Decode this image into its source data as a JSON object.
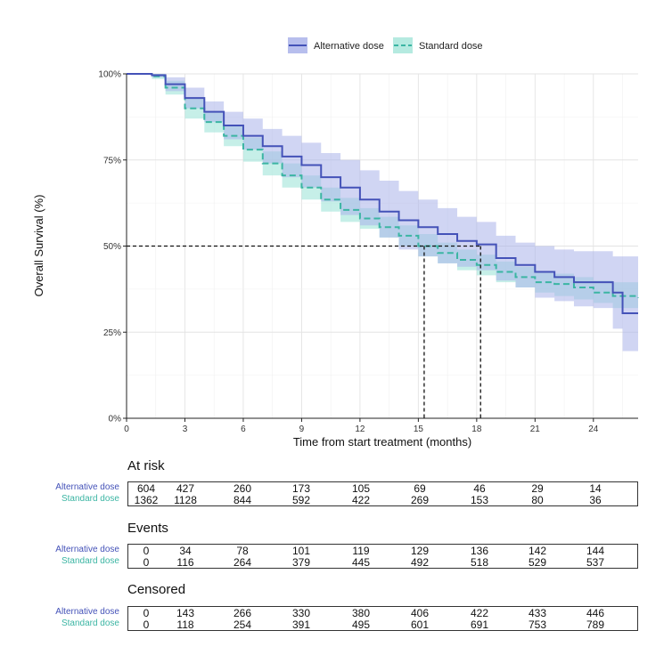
{
  "chart_data": {
    "type": "line",
    "xlabel": "Time from start treatment (months)",
    "ylabel": "Overall Survival (%)",
    "xlim": [
      0,
      26.3
    ],
    "ylim": [
      0,
      100
    ],
    "x_ticks": [
      "0",
      "3",
      "6",
      "9",
      "12",
      "15",
      "18",
      "21",
      "24"
    ],
    "y_ticks": [
      "0%",
      "25%",
      "50%",
      "75%",
      "100%"
    ],
    "grid": true,
    "legend_position": "top",
    "medians": [
      15.3,
      18.2
    ],
    "series": [
      {
        "name": "Alternative dose",
        "color": "#4452b8",
        "band_color": "#aab3ea",
        "line_style": "solid",
        "points": [
          [
            0,
            100
          ],
          [
            1.3,
            99.6
          ],
          [
            2,
            97
          ],
          [
            3,
            93
          ],
          [
            4,
            89
          ],
          [
            5,
            85
          ],
          [
            6,
            82
          ],
          [
            7,
            79
          ],
          [
            8,
            76
          ],
          [
            9,
            73.5
          ],
          [
            10,
            70
          ],
          [
            11,
            67
          ],
          [
            12,
            63.5
          ],
          [
            13,
            60
          ],
          [
            14,
            57.5
          ],
          [
            15,
            55.5
          ],
          [
            16,
            53.5
          ],
          [
            17,
            51.5
          ],
          [
            18,
            50.5
          ],
          [
            19,
            46.5
          ],
          [
            20,
            44.5
          ],
          [
            21,
            42.5
          ],
          [
            22,
            41
          ],
          [
            23,
            39.5
          ],
          [
            24,
            39.5
          ],
          [
            25,
            36.5
          ],
          [
            25.5,
            30.5
          ],
          [
            26.3,
            30.5
          ]
        ],
        "ci_upper": [
          [
            0,
            100
          ],
          [
            1.3,
            100
          ],
          [
            2,
            99
          ],
          [
            3,
            96
          ],
          [
            4,
            92
          ],
          [
            5,
            89
          ],
          [
            6,
            87
          ],
          [
            7,
            84
          ],
          [
            8,
            82
          ],
          [
            9,
            80
          ],
          [
            10,
            77
          ],
          [
            11,
            75
          ],
          [
            12,
            72
          ],
          [
            13,
            69
          ],
          [
            14,
            66
          ],
          [
            15,
            63.5
          ],
          [
            16,
            61
          ],
          [
            17,
            58.5
          ],
          [
            18,
            57
          ],
          [
            19,
            53
          ],
          [
            20,
            51
          ],
          [
            21,
            50
          ],
          [
            22,
            49
          ],
          [
            23,
            48.5
          ],
          [
            24,
            48.5
          ],
          [
            25,
            47
          ],
          [
            26.3,
            47
          ]
        ],
        "ci_lower": [
          [
            0,
            100
          ],
          [
            1.3,
            99
          ],
          [
            2,
            95
          ],
          [
            3,
            90
          ],
          [
            4,
            86
          ],
          [
            5,
            81
          ],
          [
            6,
            78
          ],
          [
            7,
            74
          ],
          [
            8,
            70
          ],
          [
            9,
            67
          ],
          [
            10,
            63
          ],
          [
            11,
            59
          ],
          [
            12,
            56
          ],
          [
            13,
            52.5
          ],
          [
            14,
            49
          ],
          [
            15,
            47
          ],
          [
            16,
            45
          ],
          [
            17,
            44
          ],
          [
            18,
            43
          ],
          [
            19,
            40
          ],
          [
            20,
            38
          ],
          [
            21,
            35
          ],
          [
            22,
            34
          ],
          [
            23,
            32.5
          ],
          [
            24,
            32
          ],
          [
            25,
            26
          ],
          [
            25.5,
            19.5
          ],
          [
            26.3,
            19.5
          ]
        ]
      },
      {
        "name": "Standard dose",
        "color": "#3bb5a3",
        "band_color": "#a8e6db",
        "line_style": "dashed",
        "points": [
          [
            0,
            100
          ],
          [
            1.3,
            99.3
          ],
          [
            2,
            96
          ],
          [
            3,
            90
          ],
          [
            4,
            86
          ],
          [
            5,
            82
          ],
          [
            6,
            78
          ],
          [
            7,
            74
          ],
          [
            8,
            70.5
          ],
          [
            9,
            67
          ],
          [
            10,
            63.5
          ],
          [
            11,
            60.5
          ],
          [
            12,
            58
          ],
          [
            13,
            55.5
          ],
          [
            14,
            53
          ],
          [
            15,
            50
          ],
          [
            16,
            48
          ],
          [
            17,
            46
          ],
          [
            18,
            44.5
          ],
          [
            19,
            42.5
          ],
          [
            20,
            41
          ],
          [
            21,
            39.5
          ],
          [
            22,
            39
          ],
          [
            23,
            38
          ],
          [
            24,
            36.5
          ],
          [
            25,
            35.5
          ],
          [
            26.3,
            35
          ]
        ],
        "ci_upper": [
          [
            0,
            100
          ],
          [
            1.3,
            100
          ],
          [
            2,
            98
          ],
          [
            3,
            93
          ],
          [
            4,
            89
          ],
          [
            5,
            85
          ],
          [
            6,
            81.5
          ],
          [
            7,
            77.5
          ],
          [
            8,
            74
          ],
          [
            9,
            70.5
          ],
          [
            10,
            67
          ],
          [
            11,
            64
          ],
          [
            12,
            61
          ],
          [
            13,
            58.5
          ],
          [
            14,
            56
          ],
          [
            15,
            53.5
          ],
          [
            16,
            51
          ],
          [
            17,
            49
          ],
          [
            18,
            47.5
          ],
          [
            19,
            45.5
          ],
          [
            20,
            44
          ],
          [
            21,
            42.5
          ],
          [
            22,
            42
          ],
          [
            23,
            41
          ],
          [
            24,
            40
          ],
          [
            25,
            39.5
          ],
          [
            26.3,
            39
          ]
        ],
        "ci_lower": [
          [
            0,
            100
          ],
          [
            1.3,
            98.5
          ],
          [
            2,
            94
          ],
          [
            3,
            87
          ],
          [
            4,
            83
          ],
          [
            5,
            79
          ],
          [
            6,
            74.5
          ],
          [
            7,
            70.5
          ],
          [
            8,
            67
          ],
          [
            9,
            63.5
          ],
          [
            10,
            60
          ],
          [
            11,
            57
          ],
          [
            12,
            55
          ],
          [
            13,
            52.5
          ],
          [
            14,
            50
          ],
          [
            15,
            47
          ],
          [
            16,
            45
          ],
          [
            17,
            43
          ],
          [
            18,
            41.5
          ],
          [
            19,
            39.5
          ],
          [
            20,
            38
          ],
          [
            21,
            36.5
          ],
          [
            22,
            35.5
          ],
          [
            23,
            34.5
          ],
          [
            24,
            33.5
          ],
          [
            25,
            32
          ],
          [
            26.3,
            31
          ]
        ]
      }
    ]
  },
  "tables": [
    {
      "title": "At risk",
      "alt_label": "Alternative dose",
      "std_label": "Standard dose",
      "alt": [
        "604",
        "427",
        "260",
        "173",
        "105",
        "69",
        "46",
        "29",
        "14"
      ],
      "std": [
        "1362",
        "1128",
        "844",
        "592",
        "422",
        "269",
        "153",
        "80",
        "36"
      ]
    },
    {
      "title": "Events",
      "alt_label": "Alternative dose",
      "std_label": "Standard dose",
      "alt": [
        "0",
        "34",
        "78",
        "101",
        "119",
        "129",
        "136",
        "142",
        "144"
      ],
      "std": [
        "0",
        "116",
        "264",
        "379",
        "445",
        "492",
        "518",
        "529",
        "537"
      ]
    },
    {
      "title": "Censored",
      "alt_label": "Alternative dose",
      "std_label": "Standard dose",
      "alt": [
        "0",
        "143",
        "266",
        "330",
        "380",
        "406",
        "422",
        "433",
        "446"
      ],
      "std": [
        "0",
        "118",
        "254",
        "391",
        "495",
        "601",
        "691",
        "753",
        "789"
      ]
    }
  ]
}
